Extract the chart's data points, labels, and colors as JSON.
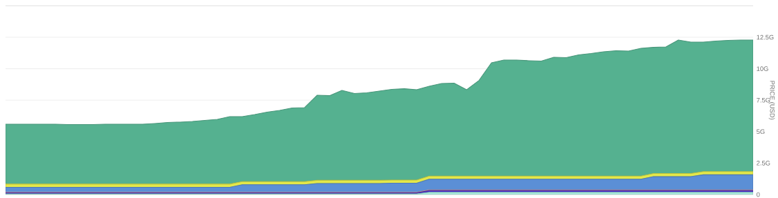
{
  "chart_data": {
    "type": "area",
    "stacked": true,
    "ylabel": "PRICE (USD)",
    "categories": [
      null,
      null,
      null,
      null,
      null,
      null,
      null,
      null,
      null,
      null,
      null,
      null,
      null,
      null,
      null,
      null,
      null,
      null,
      null,
      null,
      null,
      null,
      null,
      null,
      null,
      null,
      null,
      null,
      null,
      null,
      null,
      null,
      null,
      null,
      null,
      null,
      null,
      null,
      null,
      null,
      null,
      null,
      null,
      null,
      null,
      null,
      null,
      null,
      null,
      null,
      null,
      null,
      null,
      null,
      null,
      null,
      null,
      null,
      null,
      null,
      null
    ],
    "ylim": [
      0,
      15
    ],
    "yticks": [
      0,
      {
        "value": 2.5,
        "label": "2.5G"
      },
      {
        "value": 5,
        "label": "5G"
      },
      {
        "value": 7.5,
        "label": "7.5G"
      },
      {
        "value": 10,
        "label": "10G"
      },
      {
        "value": 12.5,
        "label": "12.5G"
      }
    ],
    "grid": true,
    "tick_labels": "y",
    "series": [
      {
        "color": "#a8ecdc",
        "values": [
          0.05,
          0.05,
          0.05,
          0.05,
          0.05,
          0.05,
          0.05,
          0.05,
          0.05,
          0.05,
          0.05,
          0.05,
          0.05,
          0.05,
          0.05,
          0.05,
          0.05,
          0.05,
          0.05,
          0.05,
          0.05,
          0.05,
          0.05,
          0.05,
          0.05,
          0.05,
          0.05,
          0.05,
          0.05,
          0.05,
          0.05,
          0.05,
          0.05,
          0.05,
          0.18,
          0.18,
          0.18,
          0.18,
          0.18,
          0.18,
          0.18,
          0.18,
          0.18,
          0.18,
          0.18,
          0.18,
          0.18,
          0.18,
          0.18,
          0.18,
          0.18,
          0.18,
          0.18,
          0.18,
          0.18,
          0.18,
          0.18,
          0.18,
          0.18,
          0.18,
          0.18
        ]
      },
      {
        "color": "#4a2fc4",
        "values": [
          0.08,
          0.08,
          0.08,
          0.08,
          0.08,
          0.08,
          0.08,
          0.08,
          0.08,
          0.08,
          0.08,
          0.08,
          0.08,
          0.08,
          0.08,
          0.08,
          0.08,
          0.08,
          0.08,
          0.08,
          0.08,
          0.08,
          0.08,
          0.08,
          0.08,
          0.08,
          0.08,
          0.08,
          0.08,
          0.08,
          0.08,
          0.08,
          0.08,
          0.08,
          0.14,
          0.14,
          0.14,
          0.14,
          0.14,
          0.14,
          0.14,
          0.14,
          0.14,
          0.14,
          0.14,
          0.14,
          0.14,
          0.14,
          0.14,
          0.14,
          0.14,
          0.14,
          0.14,
          0.14,
          0.14,
          0.14,
          0.14,
          0.14,
          0.14,
          0.14,
          0.14
        ]
      },
      {
        "color": "#e8a0a0",
        "values": [
          0.05,
          0.05,
          0.05,
          0.05,
          0.05,
          0.05,
          0.05,
          0.05,
          0.05,
          0.05,
          0.05,
          0.05,
          0.05,
          0.05,
          0.05,
          0.05,
          0.05,
          0.05,
          0.05,
          0.05,
          0.05,
          0.05,
          0.05,
          0.05,
          0.05,
          0.05,
          0.05,
          0.05,
          0.05,
          0.05,
          0.05,
          0.05,
          0.05,
          0.05,
          0.05,
          0.05,
          0.05,
          0.05,
          0.05,
          0.05,
          0.05,
          0.05,
          0.05,
          0.05,
          0.05,
          0.05,
          0.05,
          0.05,
          0.05,
          0.05,
          0.05,
          0.05,
          0.05,
          0.05,
          0.05,
          0.05,
          0.05,
          0.05,
          0.05,
          0.05,
          0.05
        ]
      },
      {
        "color": "#5b8fd6",
        "values": [
          0.4,
          0.4,
          0.4,
          0.4,
          0.4,
          0.4,
          0.4,
          0.4,
          0.4,
          0.4,
          0.4,
          0.4,
          0.4,
          0.4,
          0.4,
          0.4,
          0.4,
          0.4,
          0.4,
          0.6,
          0.6,
          0.6,
          0.6,
          0.6,
          0.6,
          0.7,
          0.7,
          0.7,
          0.7,
          0.7,
          0.7,
          0.72,
          0.72,
          0.72,
          0.85,
          0.85,
          0.85,
          0.85,
          0.85,
          0.85,
          0.85,
          0.85,
          0.85,
          0.85,
          0.85,
          0.85,
          0.85,
          0.85,
          0.85,
          0.85,
          0.85,
          0.85,
          1.05,
          1.05,
          1.05,
          1.05,
          1.2,
          1.2,
          1.2,
          1.2,
          1.2
        ]
      },
      {
        "color": "#e3e84a",
        "values": [
          0.25,
          0.25,
          0.25,
          0.25,
          0.25,
          0.25,
          0.25,
          0.25,
          0.25,
          0.25,
          0.25,
          0.25,
          0.25,
          0.25,
          0.25,
          0.25,
          0.25,
          0.25,
          0.25,
          0.25,
          0.25,
          0.25,
          0.25,
          0.25,
          0.25,
          0.25,
          0.25,
          0.25,
          0.25,
          0.25,
          0.25,
          0.25,
          0.25,
          0.25,
          0.25,
          0.25,
          0.25,
          0.25,
          0.25,
          0.25,
          0.25,
          0.25,
          0.25,
          0.25,
          0.25,
          0.25,
          0.25,
          0.25,
          0.25,
          0.25,
          0.25,
          0.25,
          0.25,
          0.25,
          0.25,
          0.25,
          0.25,
          0.25,
          0.25,
          0.25,
          0.25
        ]
      },
      {
        "color": "#55b190",
        "values": [
          4.76,
          4.76,
          4.76,
          4.76,
          4.76,
          4.73,
          4.73,
          4.73,
          4.76,
          4.76,
          4.76,
          4.76,
          4.82,
          4.9,
          4.93,
          4.98,
          5.06,
          5.15,
          5.37,
          5.17,
          5.33,
          5.52,
          5.66,
          5.85,
          5.88,
          6.76,
          6.73,
          7.15,
          6.9,
          6.96,
          7.09,
          7.21,
          7.26,
          7.18,
          7.14,
          7.36,
          7.38,
          6.86,
          7.6,
          9.0,
          9.22,
          9.22,
          9.17,
          9.14,
          9.44,
          9.41,
          9.63,
          9.74,
          9.88,
          9.96,
          9.93,
          10.15,
          10.03,
          10.06,
          10.61,
          10.45,
          10.3,
          10.38,
          10.43,
          10.46,
          10.46
        ]
      }
    ]
  }
}
